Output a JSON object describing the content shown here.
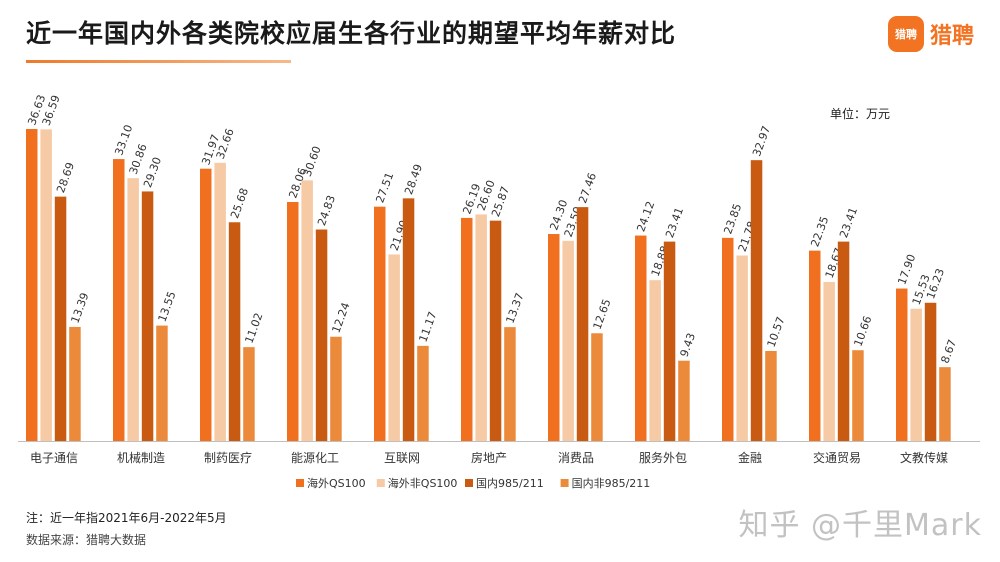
{
  "header": {
    "title": "近一年国内外各类院校应届生各行业的期望平均年薪对比",
    "logo_icon_text": "猎聘",
    "logo_text": "猎聘"
  },
  "unit_label": "单位：万元",
  "notes": {
    "note": "注：近一年指2021年6月-2022年5月",
    "source": "数据来源：猎聘大数据"
  },
  "watermark": "知乎 @千里Mark",
  "colors": {
    "海外QS100": "#f07020",
    "海外非QS100": "#f7caa6",
    "国内985/211": "#c95a12",
    "国内非985/211": "#ec8a3c"
  },
  "chart_data": {
    "type": "bar",
    "categories": [
      "电子通信",
      "机械制造",
      "制药医疗",
      "能源化工",
      "互联网",
      "房地产",
      "消费品",
      "服务外包",
      "金融",
      "交通贸易",
      "文教传媒"
    ],
    "series": [
      {
        "name": "海外QS100",
        "values": [
          36.63,
          33.1,
          31.97,
          28.06,
          27.51,
          26.19,
          24.3,
          24.12,
          23.85,
          22.35,
          17.9
        ]
      },
      {
        "name": "海外非QS100",
        "values": [
          36.59,
          30.86,
          32.66,
          30.6,
          21.9,
          26.6,
          23.5,
          18.88,
          21.78,
          18.67,
          15.53
        ]
      },
      {
        "name": "国内985/211",
        "values": [
          28.69,
          29.3,
          25.68,
          24.83,
          28.49,
          25.87,
          27.46,
          23.41,
          32.97,
          23.41,
          16.23
        ]
      },
      {
        "name": "国内非985/211",
        "values": [
          13.39,
          13.55,
          11.02,
          12.24,
          11.17,
          13.37,
          12.65,
          9.43,
          10.57,
          10.66,
          8.67
        ]
      }
    ],
    "data_labels": [
      [
        "36.63",
        "36.59",
        "28.69",
        "13.39"
      ],
      [
        "33.10",
        "30.86",
        "29.30",
        "13.55"
      ],
      [
        "31.97",
        "32.66",
        "25.68",
        "11.02"
      ],
      [
        "28.06",
        "30.60",
        "24.83",
        "12.24"
      ],
      [
        "27.51",
        "21.90",
        "28.49",
        "11.17"
      ],
      [
        "26.19",
        "26.60",
        "25.87",
        "13.37"
      ],
      [
        "24.30",
        "23.50",
        "27.46",
        "12.65"
      ],
      [
        "24.12",
        "18.88",
        "23.41",
        "9.43"
      ],
      [
        "23.85",
        "21.78",
        "32.97",
        "10.57"
      ],
      [
        "22.35",
        "18.67",
        "23.41",
        "10.66"
      ],
      [
        "17.90",
        "15.53",
        "16.23",
        "8.67"
      ]
    ],
    "ylim": [
      0,
      36.63
    ],
    "legend_position": "bottom",
    "grid": false
  }
}
